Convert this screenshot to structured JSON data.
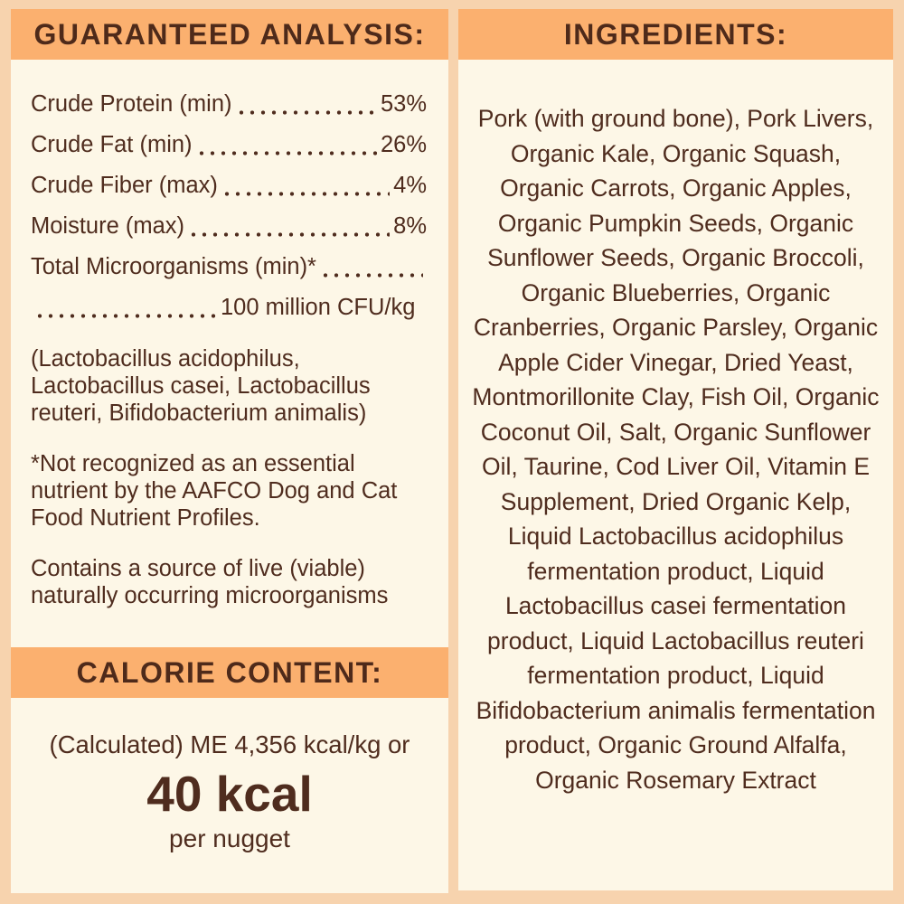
{
  "colors": {
    "background_peach": "#f7d3ae",
    "header_orange": "#fbb06f",
    "panel_cream": "#fdf7e7",
    "text_brown": "#4f2c1e"
  },
  "guaranteed_analysis": {
    "title": "GUARANTEED ANALYSIS:",
    "rows": [
      {
        "label": "Crude Protein (min)",
        "value": "53%"
      },
      {
        "label": "Crude Fat (min)",
        "value": "26%"
      },
      {
        "label": "Crude Fiber (max)",
        "value": "4%"
      },
      {
        "label": "Moisture (max)",
        "value": "8%"
      }
    ],
    "micro_label": "Total Microorganisms (min)*",
    "micro_value": "100 million CFU/kg",
    "micro_species": "(Lactobacillus acidophilus, Lactobacillus casei, Lactobacillus reuteri, Bifidobacterium animalis)",
    "footnote": "*Not recognized as an essential nutrient by the AAFCO Dog and Cat Food Nutrient Profiles.",
    "viable_note": "Contains a source of live (viable) naturally occurring microorganisms"
  },
  "calorie_content": {
    "title": "CALORIE CONTENT:",
    "line1": "(Calculated) ME 4,356 kcal/kg or",
    "kcal": "40 kcal",
    "per": "per nugget"
  },
  "ingredients": {
    "title": "INGREDIENTS:",
    "text": "Pork (with ground bone), Pork Livers, Organic Kale, Organic Squash, Organic Carrots, Organic Apples, Organic Pumpkin Seeds, Organic Sunflower Seeds, Organic Broccoli, Organic Blueberries, Organic Cranberries, Organic Parsley, Organic Apple Cider Vinegar, Dried Yeast, Montmorillonite Clay, Fish Oil, Organic Coconut Oil, Salt, Organic Sunflower Oil, Taurine, Cod Liver Oil, Vitamin E Supplement, Dried Organic Kelp, Liquid Lactobacillus acidophilus fermentation product, Liquid Lactobacillus casei fermentation product, Liquid Lactobacillus reuteri fermentation product, Liquid Bifidobacterium animalis fermentation product, Organic Ground Alfalfa, Organic Rosemary Extract"
  }
}
